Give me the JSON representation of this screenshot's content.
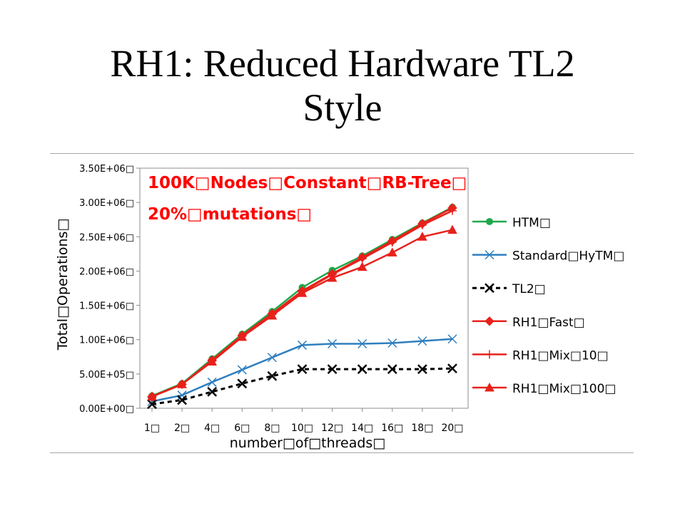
{
  "slide": {
    "title_line1": "RH1: Reduced Hardware TL2",
    "title_line2": "Style"
  },
  "chart_data": {
    "type": "line",
    "annotation": [
      "100K□Nodes□Constant□RB-Tree□",
      "20%□mutations□"
    ],
    "annotation_color": "#ff0000",
    "xlabel": "number□of□threads□",
    "ylabel": "Total□Operations□",
    "x": [
      "1□",
      "2□",
      "4□",
      "6□",
      "8□",
      "10□",
      "12□",
      "14□",
      "16□",
      "18□",
      "20□"
    ],
    "ylim": [
      0,
      3500000
    ],
    "yticks": [
      {
        "value": 0,
        "label": "0.00E+00□"
      },
      {
        "value": 500000,
        "label": "5.00E+05□"
      },
      {
        "value": 1000000,
        "label": "1.00E+06□"
      },
      {
        "value": 1500000,
        "label": "1.50E+06□"
      },
      {
        "value": 2000000,
        "label": "2.00E+06□"
      },
      {
        "value": 2500000,
        "label": "2.50E+06□"
      },
      {
        "value": 3000000,
        "label": "3.00E+06□"
      },
      {
        "value": 3500000,
        "label": "3.50E+06□"
      }
    ],
    "grid": false,
    "legend_position": "right",
    "series": [
      {
        "name": "HTM□",
        "color": "#1fa84a",
        "dash": false,
        "marker": "circle",
        "values": [
          180000,
          360000,
          720000,
          1080000,
          1410000,
          1760000,
          2010000,
          2220000,
          2460000,
          2700000,
          2930000
        ]
      },
      {
        "name": "Standard□HyTM□",
        "color": "#2f7fbf",
        "dash": false,
        "marker": "x",
        "values": [
          100000,
          190000,
          380000,
          560000,
          740000,
          920000,
          940000,
          940000,
          950000,
          980000,
          1010000
        ]
      },
      {
        "name": "TL2□",
        "color": "#000000",
        "dash": true,
        "marker": "x",
        "values": [
          60000,
          120000,
          240000,
          360000,
          470000,
          570000,
          570000,
          570000,
          570000,
          570000,
          580000
        ]
      },
      {
        "name": "RH1□Fast□",
        "color": "#e8211b",
        "dash": false,
        "marker": "diamond",
        "values": [
          170000,
          350000,
          700000,
          1060000,
          1380000,
          1710000,
          1960000,
          2200000,
          2440000,
          2690000,
          2920000
        ]
      },
      {
        "name": "RH1□Mix□10□",
        "color": "#e8211b",
        "dash": false,
        "marker": "plus",
        "values": [
          170000,
          350000,
          690000,
          1050000,
          1370000,
          1700000,
          1950000,
          2180000,
          2420000,
          2670000,
          2880000
        ]
      },
      {
        "name": "RH1□Mix□100□",
        "color": "#e8211b",
        "dash": false,
        "marker": "triangle",
        "values": [
          170000,
          350000,
          680000,
          1040000,
          1350000,
          1680000,
          1900000,
          2060000,
          2270000,
          2500000,
          2600000
        ]
      }
    ]
  }
}
